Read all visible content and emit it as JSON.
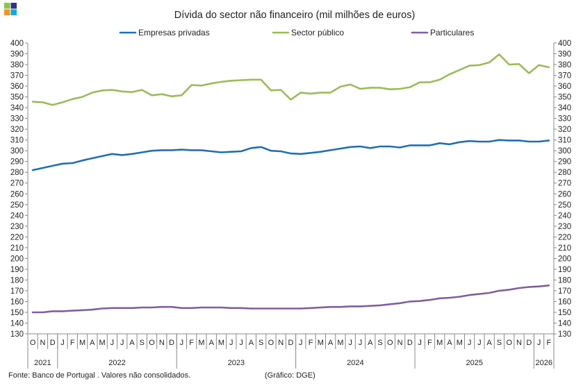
{
  "logo": {
    "name": "dge-logo",
    "colors": [
      "#8DC63F",
      "#2E3192",
      "#F7941D",
      "#00AEEF"
    ]
  },
  "footer": {
    "source": "Fonte: Banco de Portugal . Valores não consolidados.",
    "credit": "(Gráfico: DGE)"
  },
  "chart_data": {
    "type": "line",
    "title": "Dívida do sector não financeiro (mil milhões de euros)",
    "xlabel": "",
    "ylabel": "",
    "ylim": [
      130,
      400
    ],
    "ytick_step": 10,
    "y_axis_sides": [
      "left",
      "right"
    ],
    "grid": false,
    "legend_position": "top",
    "month_labels": [
      "O",
      "N",
      "D",
      "J",
      "F",
      "M",
      "A",
      "M",
      "J",
      "J",
      "A",
      "S",
      "O",
      "N",
      "D",
      "J",
      "F",
      "M",
      "A",
      "M",
      "J",
      "J",
      "A",
      "S",
      "O",
      "N",
      "D",
      "J",
      "F",
      "M",
      "A",
      "M",
      "J",
      "J",
      "A",
      "S",
      "O",
      "N",
      "D",
      "J",
      "F",
      "M",
      "A",
      "M",
      "J",
      "J",
      "A",
      "S",
      "O",
      "N",
      "D",
      "J",
      "F"
    ],
    "year_groups": [
      {
        "label": "2021",
        "start": 0,
        "count": 3
      },
      {
        "label": "2022",
        "start": 3,
        "count": 12
      },
      {
        "label": "2023",
        "start": 15,
        "count": 12
      },
      {
        "label": "2024",
        "start": 27,
        "count": 12
      },
      {
        "label": "2025",
        "start": 39,
        "count": 12
      },
      {
        "label": "2026",
        "start": 51,
        "count": 2
      }
    ],
    "series": [
      {
        "name": "Empresas privadas",
        "color": "#1F6FB4",
        "values": [
          282.0,
          284.0,
          286.0,
          288.0,
          288.5,
          291.0,
          293.0,
          295.0,
          297.0,
          296.0,
          297.0,
          298.5,
          300.0,
          300.5,
          300.5,
          301.0,
          300.5,
          300.5,
          299.5,
          298.5,
          299.0,
          299.5,
          302.5,
          303.5,
          300.0,
          299.5,
          297.5,
          297.0,
          298.0,
          299.0,
          300.5,
          302.0,
          303.5,
          304.0,
          302.5,
          304.0,
          304.0,
          303.0,
          305.0,
          305.0,
          305.0,
          307.0,
          306.0,
          308.0,
          309.0,
          308.5,
          308.5,
          310.0,
          309.5,
          309.5,
          308.5,
          308.5,
          309.5
        ]
      },
      {
        "name": "Sector público",
        "color": "#9BBB59",
        "values": [
          345.5,
          345.0,
          342.5,
          345.0,
          348.0,
          350.0,
          354.0,
          356.0,
          356.5,
          355.0,
          354.5,
          356.5,
          351.5,
          352.5,
          350.5,
          351.5,
          361.0,
          360.5,
          362.5,
          364.0,
          365.0,
          365.5,
          366.0,
          366.0,
          356.0,
          356.5,
          347.5,
          354.0,
          353.0,
          354.0,
          354.0,
          359.5,
          361.5,
          357.5,
          358.5,
          358.5,
          357.0,
          357.5,
          359.0,
          363.5,
          363.5,
          366.0,
          371.0,
          375.0,
          379.0,
          379.5,
          382.0,
          389.5,
          380.0,
          380.5,
          372.0,
          379.5,
          377.5
        ]
      },
      {
        "name": "Particulares",
        "color": "#7E5F9F",
        "values": [
          150.0,
          150.0,
          151.0,
          151.0,
          151.5,
          152.0,
          152.5,
          153.5,
          154.0,
          154.0,
          154.0,
          154.5,
          154.5,
          155.0,
          155.0,
          154.0,
          154.0,
          154.5,
          154.5,
          154.5,
          154.0,
          154.0,
          153.5,
          153.5,
          153.5,
          153.5,
          153.5,
          153.5,
          154.0,
          154.5,
          155.0,
          155.0,
          155.5,
          155.5,
          156.0,
          156.5,
          157.5,
          158.5,
          160.0,
          160.5,
          161.5,
          163.0,
          163.5,
          164.5,
          166.0,
          167.0,
          168.0,
          170.0,
          171.0,
          172.5,
          173.5,
          174.0,
          175.0
        ]
      }
    ]
  }
}
